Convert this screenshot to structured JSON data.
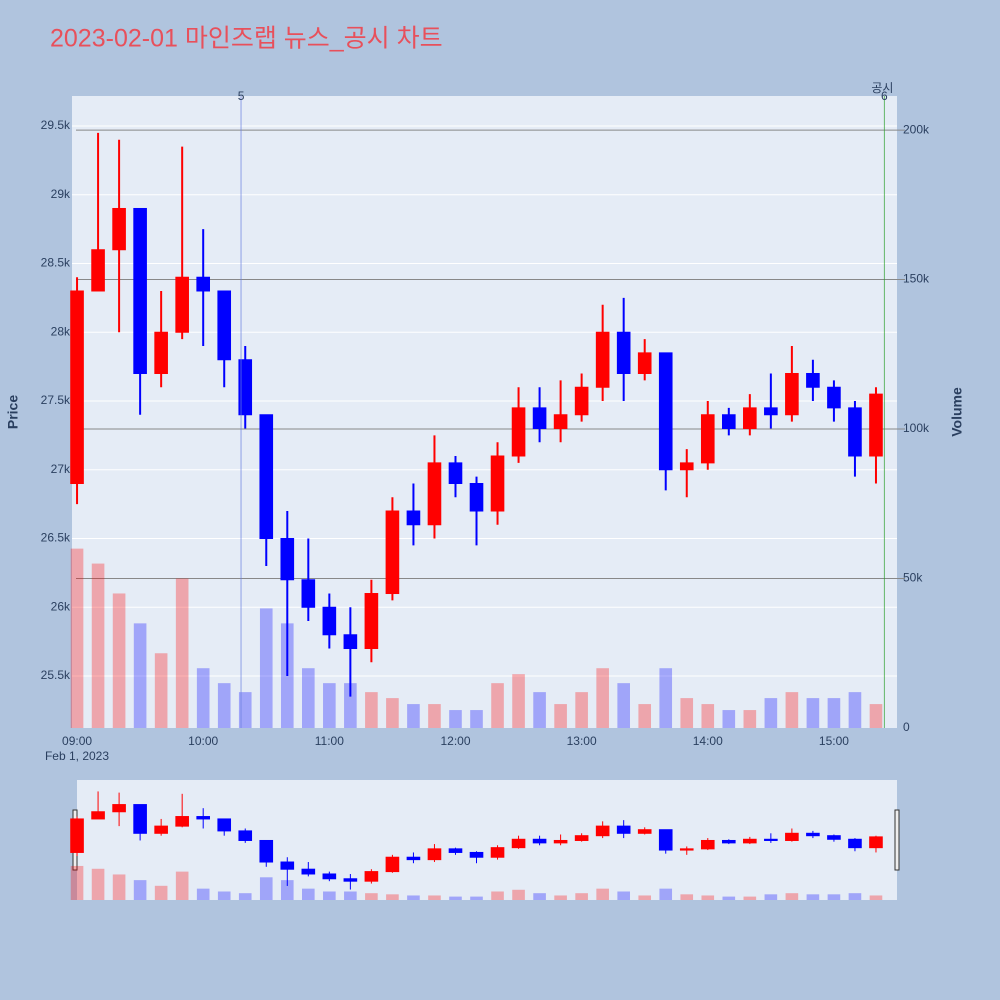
{
  "chart_data": {
    "type": "candlestick",
    "title": "2023-02-01 마인즈랩 뉴스_공시 차트",
    "y_label": "Price",
    "y2_label": "Volume",
    "date_label": "Feb 1, 2023",
    "up_color": "#ff0000",
    "down_color": "#0000ff",
    "x": [
      "2023-02-01 09:00",
      "2023-02-01 09:10",
      "2023-02-01 09:20",
      "2023-02-01 09:30",
      "2023-02-01 09:40",
      "2023-02-01 09:50",
      "2023-02-01 10:00",
      "2023-02-01 10:10",
      "2023-02-01 10:20",
      "2023-02-01 10:30",
      "2023-02-01 10:40",
      "2023-02-01 10:50",
      "2023-02-01 11:00",
      "2023-02-01 11:10",
      "2023-02-01 11:20",
      "2023-02-01 11:30",
      "2023-02-01 11:40",
      "2023-02-01 11:50",
      "2023-02-01 12:00",
      "2023-02-01 12:10",
      "2023-02-01 12:20",
      "2023-02-01 12:30",
      "2023-02-01 12:40",
      "2023-02-01 12:50",
      "2023-02-01 13:00",
      "2023-02-01 13:10",
      "2023-02-01 13:20",
      "2023-02-01 13:30",
      "2023-02-01 13:40",
      "2023-02-01 13:50",
      "2023-02-01 14:00",
      "2023-02-01 14:10",
      "2023-02-01 14:20",
      "2023-02-01 14:30",
      "2023-02-01 14:40",
      "2023-02-01 14:50",
      "2023-02-01 15:00",
      "2023-02-01 15:10",
      "2023-02-01 15:20"
    ],
    "open": [
      26900,
      28300,
      28600,
      28900,
      27700,
      28000,
      28400,
      28300,
      27800,
      27400,
      26500,
      26200,
      26000,
      25800,
      25700,
      26100,
      26700,
      26600,
      27050,
      26900,
      26700,
      27100,
      27450,
      27300,
      27400,
      27600,
      28000,
      27700,
      27850,
      27000,
      27050,
      27400,
      27300,
      27450,
      27400,
      27700,
      27600,
      27450,
      27100
    ],
    "high": [
      28400,
      29450,
      29400,
      28900,
      28300,
      29350,
      28750,
      28300,
      27900,
      27400,
      26700,
      26500,
      26100,
      26000,
      26200,
      26800,
      26900,
      27250,
      27100,
      26950,
      27200,
      27600,
      27600,
      27650,
      27700,
      28200,
      28250,
      27950,
      27850,
      27150,
      27500,
      27450,
      27550,
      27700,
      27900,
      27800,
      27650,
      27500,
      27600
    ],
    "low": [
      26750,
      28300,
      28000,
      27400,
      27600,
      27950,
      27900,
      27600,
      27300,
      26300,
      25500,
      25900,
      25700,
      25350,
      25600,
      26050,
      26450,
      26500,
      26800,
      26450,
      26600,
      27050,
      27200,
      27200,
      27350,
      27500,
      27500,
      27650,
      26850,
      26800,
      27000,
      27250,
      27250,
      27300,
      27350,
      27500,
      27350,
      26950,
      26900
    ],
    "close": [
      28300,
      28600,
      28900,
      27700,
      28000,
      28400,
      28300,
      27800,
      27400,
      26500,
      26200,
      26000,
      25800,
      25700,
      26100,
      26700,
      26600,
      27050,
      26900,
      26700,
      27100,
      27450,
      27300,
      27400,
      27600,
      28000,
      27700,
      27850,
      27000,
      27050,
      27400,
      27300,
      27450,
      27400,
      27700,
      27600,
      27450,
      27100,
      27550
    ],
    "volume": [
      60000,
      55000,
      45000,
      35000,
      25000,
      50000,
      20000,
      15000,
      12000,
      40000,
      35000,
      20000,
      15000,
      15000,
      12000,
      10000,
      8000,
      8000,
      6000,
      6000,
      15000,
      18000,
      12000,
      8000,
      12000,
      20000,
      15000,
      8000,
      20000,
      10000,
      8000,
      6000,
      6000,
      10000,
      12000,
      10000,
      10000,
      12000,
      8000
    ],
    "xlim": [
      "2023-02-01 08:57:36",
      "2023-02-01 15:30"
    ],
    "xticks": [
      {
        "value": "2023-02-01 09:00",
        "label": "09:00"
      },
      {
        "value": "2023-02-01 10:00",
        "label": "10:00"
      },
      {
        "value": "2023-02-01 11:00",
        "label": "11:00"
      },
      {
        "value": "2023-02-01 12:00",
        "label": "12:00"
      },
      {
        "value": "2023-02-01 13:00",
        "label": "13:00"
      },
      {
        "value": "2023-02-01 14:00",
        "label": "14:00"
      },
      {
        "value": "2023-02-01 15:00",
        "label": "15:00"
      }
    ],
    "ylim": [
      25122,
      29718
    ],
    "yticks": [
      {
        "value": 25500,
        "label": "25.5k"
      },
      {
        "value": 26000,
        "label": "26k"
      },
      {
        "value": 26500,
        "label": "26.5k"
      },
      {
        "value": 27000,
        "label": "27k"
      },
      {
        "value": 27500,
        "label": "27.5k"
      },
      {
        "value": 28000,
        "label": "28k"
      },
      {
        "value": 28500,
        "label": "28.5k"
      },
      {
        "value": 29000,
        "label": "29k"
      },
      {
        "value": 29500,
        "label": "29.5k"
      }
    ],
    "y2lim": [
      0,
      211400
    ],
    "y2ticks": [
      0,
      {
        "value": 50000,
        "label": "50k"
      },
      {
        "value": 100000,
        "label": "100k"
      },
      {
        "value": 150000,
        "label": "150k"
      },
      {
        "value": 200000,
        "label": "200k"
      }
    ],
    "events": [
      {
        "x": "2023-02-01 10:18",
        "label": "5"
      },
      {
        "x": "2023-02-01 15:24",
        "label": "6"
      }
    ],
    "event_name": "공시"
  }
}
